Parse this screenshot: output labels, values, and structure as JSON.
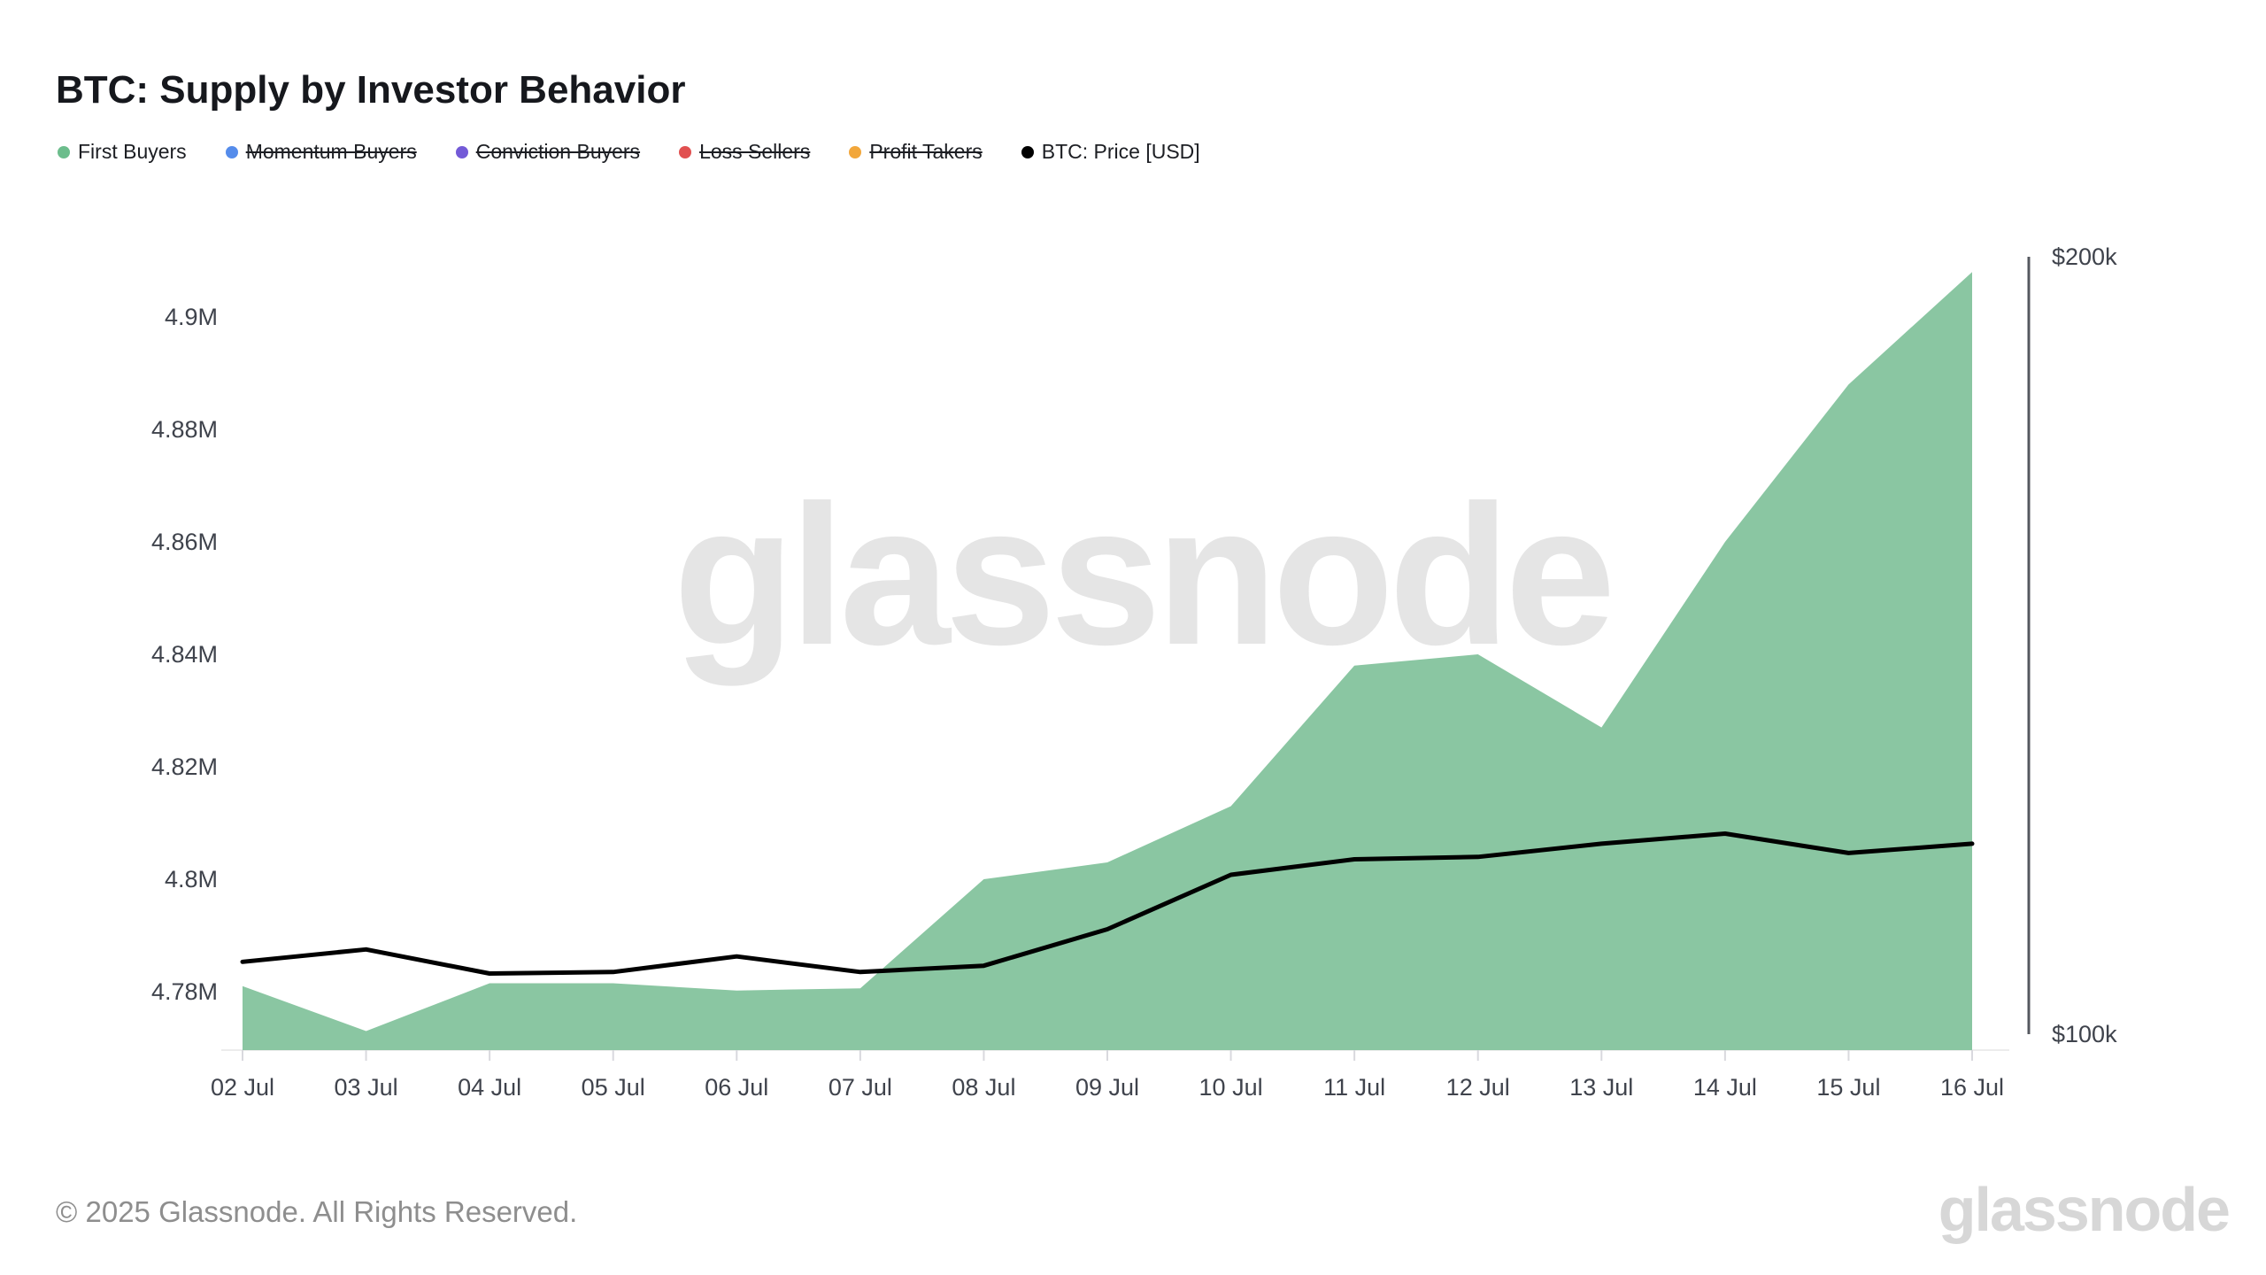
{
  "title": "BTC: Supply by Investor Behavior",
  "watermark": "glassnode",
  "footer": {
    "copyright": "© 2025 Glassnode. All Rights Reserved.",
    "brand": "glassnode"
  },
  "legend": [
    {
      "label": "First Buyers",
      "color": "#6CBD8C",
      "active": true
    },
    {
      "label": "Momentum Buyers",
      "color": "#558CEB",
      "active": false
    },
    {
      "label": "Conviction Buyers",
      "color": "#735AD7",
      "active": false
    },
    {
      "label": "Loss Sellers",
      "color": "#E15050",
      "active": false
    },
    {
      "label": "Profit Takers",
      "color": "#F2A73B",
      "active": false
    },
    {
      "label": "BTC: Price [USD]",
      "color": "#000000",
      "active": true
    }
  ],
  "chart_data": {
    "type": "area",
    "title": "BTC: Supply by Investor Behavior",
    "categories": [
      "02 Jul",
      "03 Jul",
      "04 Jul",
      "05 Jul",
      "06 Jul",
      "07 Jul",
      "08 Jul",
      "09 Jul",
      "10 Jul",
      "11 Jul",
      "12 Jul",
      "13 Jul",
      "14 Jul",
      "15 Jul",
      "16 Jul"
    ],
    "series": [
      {
        "name": "First Buyers",
        "type": "area",
        "axis": "left",
        "unit": "M BTC",
        "color": "#8AC6A2",
        "values": [
          4.781,
          4.773,
          4.7815,
          4.7815,
          4.7802,
          4.7806,
          4.8,
          4.803,
          4.813,
          4.838,
          4.84,
          4.827,
          4.86,
          4.888,
          4.908
        ]
      },
      {
        "name": "BTC: Price [USD]",
        "type": "line",
        "axis": "right",
        "unit": "$k USD",
        "color": "#000000",
        "values": [
          109.3,
          110.9,
          107.8,
          108.0,
          110.0,
          108.0,
          108.8,
          113.5,
          120.5,
          122.5,
          122.8,
          124.5,
          125.8,
          123.3,
          124.5
        ]
      }
    ],
    "left_axis": {
      "unit": "M BTC",
      "range": [
        4.768,
        4.915
      ],
      "ticks": [
        {
          "label": "4.9M",
          "value": 4.9
        },
        {
          "label": "4.88M",
          "value": 4.88
        },
        {
          "label": "4.86M",
          "value": 4.86
        },
        {
          "label": "4.84M",
          "value": 4.84
        },
        {
          "label": "4.82M",
          "value": 4.82
        },
        {
          "label": "4.8M",
          "value": 4.8
        },
        {
          "label": "4.78M",
          "value": 4.78
        }
      ]
    },
    "right_axis": {
      "unit": "USD",
      "range": [
        100,
        200
      ],
      "ticks": [
        {
          "label": "$200k",
          "value": 200
        },
        {
          "label": "$100k",
          "value": 100
        }
      ]
    },
    "grid": false,
    "legend_position": "top-left",
    "disabled_series": [
      "Momentum Buyers",
      "Conviction Buyers",
      "Loss Sellers",
      "Profit Takers"
    ]
  }
}
